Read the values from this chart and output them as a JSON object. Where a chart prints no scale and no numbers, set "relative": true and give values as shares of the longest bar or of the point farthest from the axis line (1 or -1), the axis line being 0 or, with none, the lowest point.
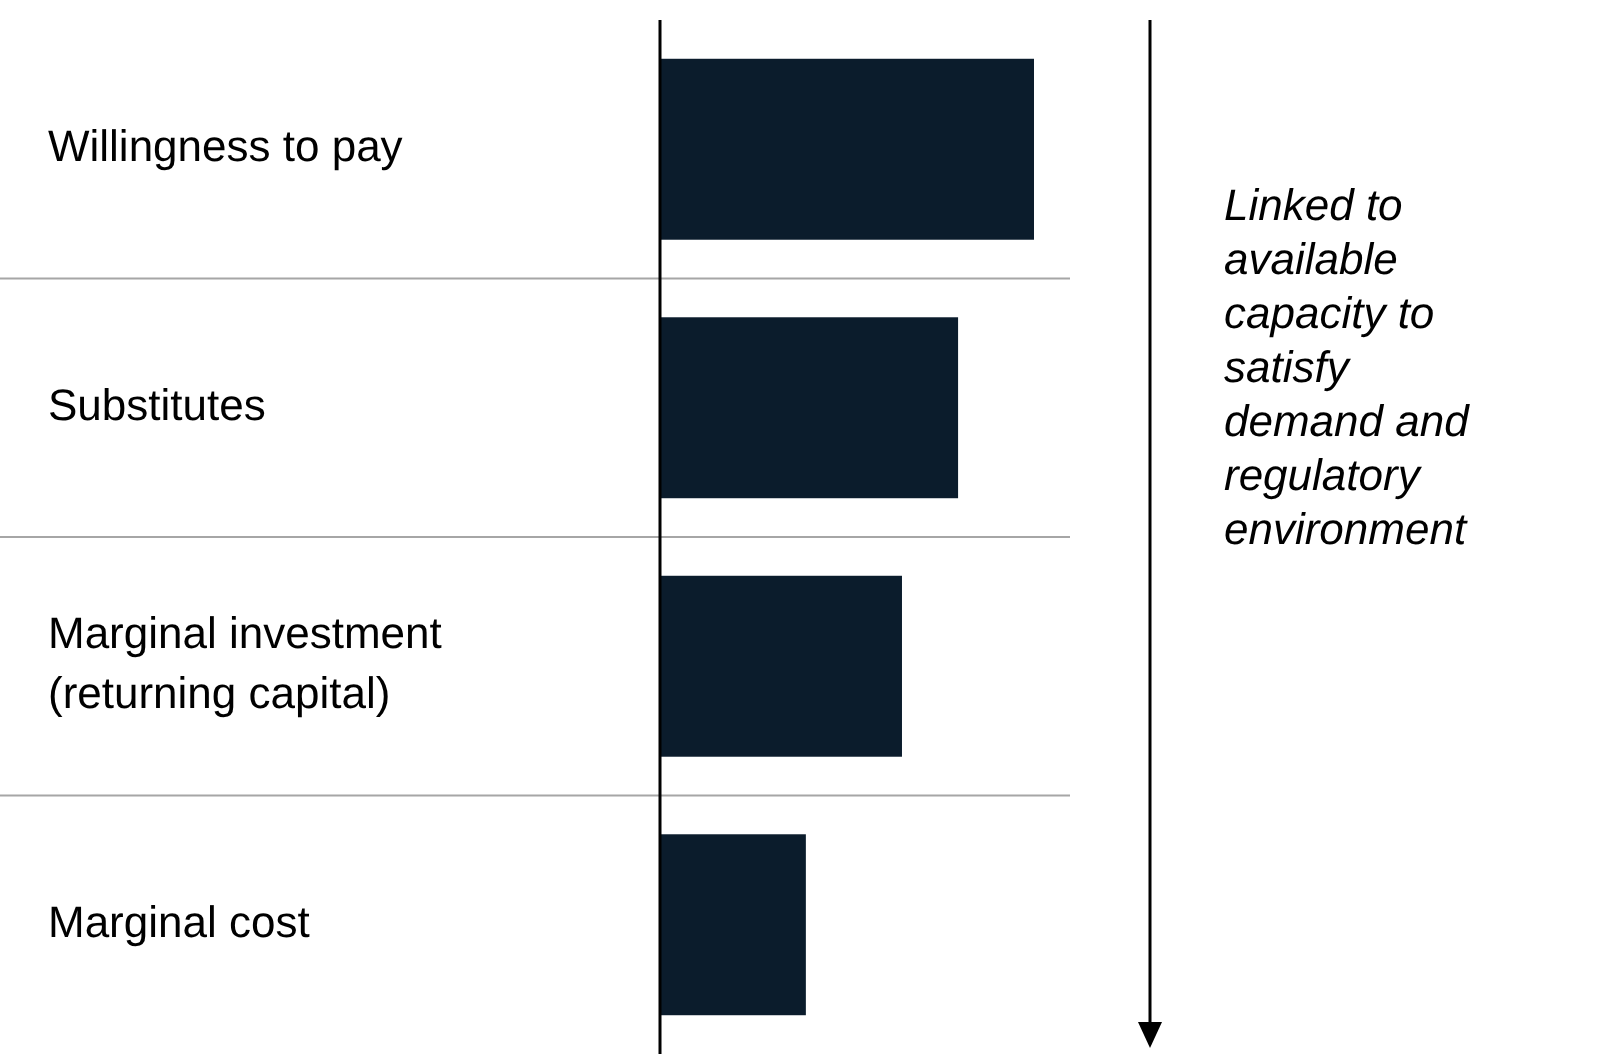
{
  "chart_data": {
    "type": "bar",
    "orientation": "horizontal",
    "relative": true,
    "grid": "y",
    "categories": [
      "Willingness to pay",
      "Substitutes",
      "Marginal investment\n(returning capital)",
      "Marginal cost"
    ],
    "values": [
      1,
      0.797,
      0.647,
      0.39
    ],
    "color": "#0b1c2c",
    "annotations": [
      "Linked to\navailable\ncapacity to\nsatisfy\ndemand and\nregulatory\nenvironment"
    ]
  }
}
